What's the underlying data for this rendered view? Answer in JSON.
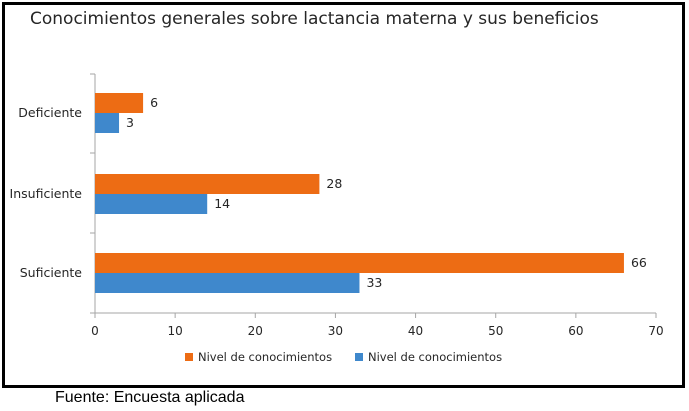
{
  "source_note": "Fuente: Encuesta aplicada",
  "colors": {
    "series_a": "#ED6C14",
    "series_b": "#3F88CC",
    "axis": "#A6A6A6"
  },
  "chart_data": {
    "type": "bar",
    "orientation": "horizontal",
    "title": "Conocimientos generales sobre lactancia materna y sus beneficios",
    "categories": [
      "Deficiente",
      "Insuficiente",
      "Suficiente"
    ],
    "series": [
      {
        "name": "Nivel de conocimientos",
        "values": [
          6,
          28,
          66
        ]
      },
      {
        "name": "Nivel de conocimientos",
        "values": [
          3,
          14,
          33
        ]
      }
    ],
    "xlim": [
      0,
      70
    ],
    "xticks": [
      0,
      10,
      20,
      30,
      40,
      50,
      60,
      70
    ],
    "grid": false,
    "legend_position": "bottom"
  }
}
